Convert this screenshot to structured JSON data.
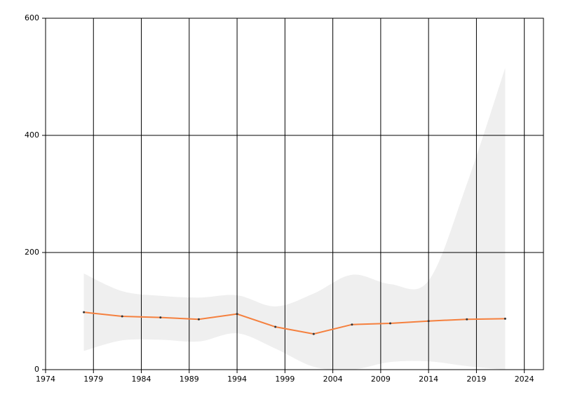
{
  "chart_data": {
    "type": "line",
    "x": [
      1978,
      1982,
      1986,
      1990,
      1994,
      1998,
      2002,
      2006,
      2010,
      2014,
      2018,
      2022
    ],
    "values": [
      98,
      91,
      89,
      86,
      95,
      73,
      61,
      77,
      79,
      83,
      86,
      87
    ],
    "color": "#f5803e",
    "band": {
      "upper": [
        164,
        134,
        126,
        123,
        127,
        108,
        130,
        162,
        146,
        152,
        317,
        515
      ],
      "lower": [
        32,
        50,
        51,
        48,
        62,
        36,
        5,
        0,
        13,
        14,
        6,
        0
      ],
      "color": "#efefef"
    },
    "xlim": [
      1974,
      2026
    ],
    "xticks": [
      1974,
      1979,
      1984,
      1989,
      1994,
      1999,
      2004,
      2009,
      2014,
      2019,
      2024
    ],
    "ylim": [
      0,
      600
    ],
    "yticks": [
      0,
      200,
      400,
      600
    ],
    "grid": true
  }
}
